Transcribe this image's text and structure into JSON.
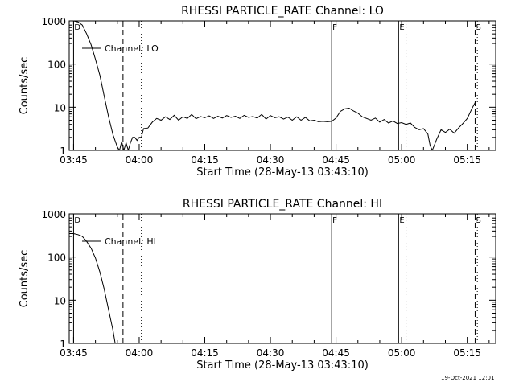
{
  "footer": {
    "timestamp": "19-Oct-2021 12:01"
  },
  "chart_data": [
    {
      "type": "line",
      "title": "RHESSI PARTICLE_RATE Channel: LO",
      "xlabel": "Start Time (28-May-13 03:43:10)",
      "ylabel": "Counts/sec",
      "x_unit": "minutes after 03:45 UT",
      "xlim": [
        -1.0,
        96.5
      ],
      "ylim": [
        1,
        1000
      ],
      "y_scale": "log",
      "grid": false,
      "x_ticks": [
        {
          "x": 0,
          "label": "03:45"
        },
        {
          "x": 15,
          "label": "04:00"
        },
        {
          "x": 30,
          "label": "04:15"
        },
        {
          "x": 45,
          "label": "04:30"
        },
        {
          "x": 60,
          "label": "04:45"
        },
        {
          "x": 75,
          "label": "05:00"
        },
        {
          "x": 90,
          "label": "05:15"
        }
      ],
      "y_ticks": [
        {
          "y": 1,
          "label": "1"
        },
        {
          "y": 10,
          "label": "10"
        },
        {
          "y": 100,
          "label": "100"
        },
        {
          "y": 1000,
          "label": "1000"
        }
      ],
      "legend": {
        "placement": "top-left",
        "label": "Channel: LO"
      },
      "markers": [
        {
          "x": 0.0,
          "label": "D",
          "style": "solid"
        },
        {
          "x": 11.3,
          "label": "",
          "style": "dashed"
        },
        {
          "x": 15.5,
          "label": "",
          "style": "dotted"
        },
        {
          "x": 59.0,
          "label": "F",
          "style": "solid"
        },
        {
          "x": 74.3,
          "label": "E",
          "style": "solid"
        },
        {
          "x": 76.0,
          "label": "",
          "style": "dotted"
        },
        {
          "x": 91.8,
          "label": "S",
          "style": "dashed"
        },
        {
          "x": 92.3,
          "label": "",
          "style": "dotted"
        }
      ],
      "series": [
        {
          "name": "Channel: LO",
          "x": [
            0,
            1,
            2,
            3,
            4,
            5,
            6,
            7,
            8,
            9,
            10,
            10.5,
            11,
            11.5,
            12,
            12.5,
            13,
            13.5,
            14,
            14.5,
            15,
            15.5,
            16,
            17,
            18,
            19,
            20,
            21,
            22,
            23,
            24,
            25,
            26,
            27,
            28,
            29,
            30,
            31,
            32,
            33,
            34,
            35,
            36,
            37,
            38,
            39,
            40,
            41,
            42,
            43,
            44,
            45,
            46,
            47,
            48,
            49,
            50,
            51,
            52,
            53,
            54,
            55,
            56,
            57,
            58,
            59,
            60,
            61,
            62,
            63,
            64,
            65,
            66,
            67,
            68,
            69,
            70,
            71,
            72,
            73,
            74,
            75,
            76,
            77,
            78,
            79,
            80,
            81,
            81.5,
            82,
            83,
            84,
            85,
            86,
            87,
            88,
            89,
            90,
            91,
            92
          ],
          "values": [
            1000,
            950,
            800,
            500,
            280,
            130,
            55,
            18,
            6,
            2.3,
            1.2,
            1.0,
            1.6,
            1.0,
            1.5,
            1.0,
            1.5,
            2.0,
            2.0,
            1.7,
            2.0,
            2.0,
            3.2,
            3.3,
            4.5,
            5.5,
            5.0,
            6.0,
            5.2,
            6.5,
            5.0,
            6.0,
            5.5,
            6.8,
            5.4,
            6.1,
            5.7,
            6.3,
            5.5,
            6.2,
            5.6,
            6.4,
            5.8,
            6.2,
            5.5,
            6.5,
            5.8,
            6.1,
            5.6,
            6.8,
            5.3,
            6.4,
            5.7,
            6.0,
            5.3,
            5.9,
            5.0,
            6.0,
            5.0,
            5.8,
            4.8,
            5.0,
            4.6,
            4.7,
            4.6,
            4.7,
            5.6,
            8.0,
            9.2,
            9.5,
            8.2,
            7.3,
            6.0,
            5.5,
            5.0,
            5.6,
            4.5,
            5.2,
            4.3,
            4.8,
            4.2,
            4.4,
            4.0,
            4.3,
            3.4,
            3.0,
            3.2,
            2.4,
            1.3,
            1.0,
            1.8,
            3.0,
            2.6,
            3.1,
            2.5,
            3.3,
            4.2,
            5.5,
            9.0,
            14
          ]
        }
      ]
    },
    {
      "type": "line",
      "title": "RHESSI PARTICLE_RATE Channel: HI",
      "xlabel": "Start Time (28-May-13 03:43:10)",
      "ylabel": "Counts/sec",
      "x_unit": "minutes after 03:45 UT",
      "xlim": [
        -1.0,
        96.5
      ],
      "ylim": [
        1,
        1000
      ],
      "y_scale": "log",
      "grid": false,
      "x_ticks": [
        {
          "x": 0,
          "label": "03:45"
        },
        {
          "x": 15,
          "label": "04:00"
        },
        {
          "x": 30,
          "label": "04:15"
        },
        {
          "x": 45,
          "label": "04:30"
        },
        {
          "x": 60,
          "label": "04:45"
        },
        {
          "x": 75,
          "label": "05:00"
        },
        {
          "x": 90,
          "label": "05:15"
        }
      ],
      "y_ticks": [
        {
          "y": 1,
          "label": "1"
        },
        {
          "y": 10,
          "label": "10"
        },
        {
          "y": 100,
          "label": "100"
        },
        {
          "y": 1000,
          "label": "1000"
        }
      ],
      "legend": {
        "placement": "top-left",
        "label": "Channel: HI"
      },
      "markers": [
        {
          "x": 0.0,
          "label": "D",
          "style": "solid"
        },
        {
          "x": 11.3,
          "label": "",
          "style": "dashed"
        },
        {
          "x": 15.5,
          "label": "",
          "style": "dotted"
        },
        {
          "x": 59.0,
          "label": "F",
          "style": "solid"
        },
        {
          "x": 74.3,
          "label": "E",
          "style": "solid"
        },
        {
          "x": 76.0,
          "label": "",
          "style": "dotted"
        },
        {
          "x": 91.8,
          "label": "S",
          "style": "dashed"
        },
        {
          "x": 92.3,
          "label": "",
          "style": "dotted"
        }
      ],
      "series": [
        {
          "name": "Channel: HI",
          "x": [
            -1,
            0,
            1,
            2,
            3,
            4,
            5,
            6,
            7,
            8,
            9,
            9.5
          ],
          "values": [
            350,
            350,
            330,
            300,
            230,
            160,
            95,
            45,
            18,
            6,
            2,
            1
          ]
        }
      ]
    }
  ]
}
